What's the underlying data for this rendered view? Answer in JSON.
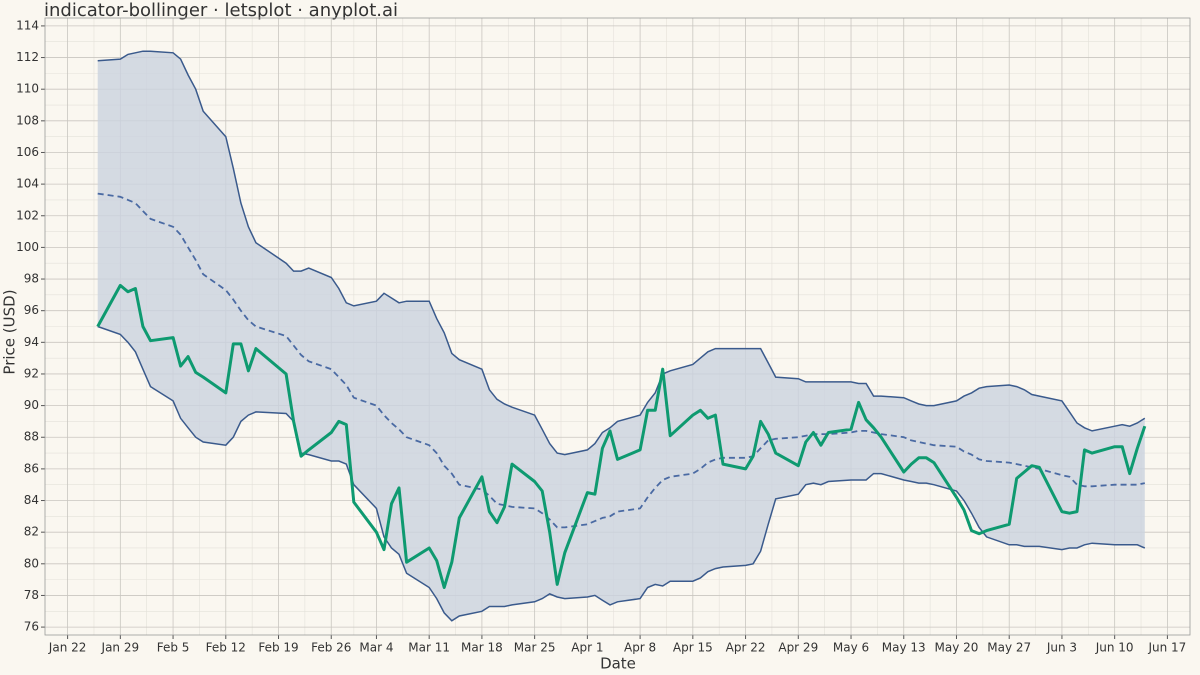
{
  "chart_data": {
    "type": "line",
    "title": "indicator-bollinger · letsplot · anyplot.ai",
    "x_label": "Date",
    "y_label": "Price (USD)",
    "x": [
      "Jan 26",
      "Jan 29",
      "Jan 30",
      "Jan 31",
      "Feb 1",
      "Feb 2",
      "Feb 5",
      "Feb 6",
      "Feb 7",
      "Feb 8",
      "Feb 9",
      "Feb 12",
      "Feb 13",
      "Feb 14",
      "Feb 15",
      "Feb 16",
      "Feb 20",
      "Feb 21",
      "Feb 22",
      "Feb 23",
      "Feb 26",
      "Feb 27",
      "Feb 28",
      "Mar 1",
      "Mar 4",
      "Mar 5",
      "Mar 6",
      "Mar 7",
      "Mar 8",
      "Mar 11",
      "Mar 12",
      "Mar 13",
      "Mar 14",
      "Mar 15",
      "Mar 18",
      "Mar 19",
      "Mar 20",
      "Mar 21",
      "Mar 22",
      "Mar 25",
      "Mar 26",
      "Mar 27",
      "Mar 28",
      "Mar 29",
      "Apr 1",
      "Apr 2",
      "Apr 3",
      "Apr 4",
      "Apr 5",
      "Apr 8",
      "Apr 9",
      "Apr 10",
      "Apr 11",
      "Apr 12",
      "Apr 15",
      "Apr 16",
      "Apr 17",
      "Apr 18",
      "Apr 19",
      "Apr 22",
      "Apr 23",
      "Apr 24",
      "Apr 25",
      "Apr 26",
      "Apr 29",
      "Apr 30",
      "May 1",
      "May 2",
      "May 3",
      "May 6",
      "May 7",
      "May 8",
      "May 9",
      "May 10",
      "May 13",
      "May 14",
      "May 15",
      "May 16",
      "May 17",
      "May 20",
      "May 21",
      "May 22",
      "May 23",
      "May 24",
      "May 27",
      "May 28",
      "May 29",
      "May 30",
      "May 31",
      "Jun 3",
      "Jun 4",
      "Jun 5",
      "Jun 6",
      "Jun 7",
      "Jun 10",
      "Jun 11",
      "Jun 12",
      "Jun 13",
      "Jun 14"
    ],
    "band": {
      "color": "#3a5a8c",
      "fill": "#cbd2de",
      "upper": [
        111.8,
        111.9,
        112.2,
        112.3,
        112.4,
        112.4,
        112.3,
        111.9,
        110.9,
        110.0,
        108.6,
        107.0,
        105.0,
        102.8,
        101.3,
        100.3,
        99.0,
        98.5,
        98.5,
        98.7,
        98.1,
        97.4,
        96.5,
        96.3,
        96.6,
        97.1,
        96.8,
        96.5,
        96.6,
        96.6,
        95.5,
        94.6,
        93.3,
        92.9,
        92.3,
        91.0,
        90.4,
        90.1,
        89.9,
        89.4,
        88.5,
        87.6,
        87.0,
        86.9,
        87.2,
        87.6,
        88.3,
        88.6,
        89.0,
        89.4,
        90.2,
        90.8,
        92.0,
        92.2,
        92.6,
        93.0,
        93.4,
        93.6,
        93.6,
        93.6,
        93.6,
        93.6,
        92.7,
        91.8,
        91.7,
        91.5,
        91.5,
        91.5,
        91.5,
        91.5,
        91.4,
        91.4,
        90.6,
        90.6,
        90.5,
        90.3,
        90.1,
        90.0,
        90.0,
        90.3,
        90.6,
        90.8,
        91.1,
        91.2,
        91.3,
        91.2,
        91.0,
        90.7,
        90.6,
        90.3,
        89.6,
        88.9,
        88.6,
        88.4,
        88.7,
        88.8,
        88.7,
        88.9,
        89.2
      ],
      "lower": [
        95.0,
        94.5,
        94.0,
        93.4,
        92.3,
        91.2,
        90.3,
        89.2,
        88.6,
        88.0,
        87.7,
        87.5,
        88.0,
        89.0,
        89.4,
        89.6,
        89.5,
        89.0,
        87.0,
        86.9,
        86.5,
        86.5,
        86.3,
        85.0,
        83.5,
        81.7,
        81.0,
        80.6,
        79.4,
        78.5,
        77.8,
        76.9,
        76.4,
        76.7,
        77.0,
        77.3,
        77.3,
        77.3,
        77.4,
        77.6,
        77.8,
        78.1,
        77.9,
        77.8,
        77.9,
        78.0,
        77.7,
        77.4,
        77.6,
        77.8,
        78.5,
        78.7,
        78.6,
        78.9,
        78.9,
        79.1,
        79.5,
        79.7,
        79.8,
        79.9,
        80.0,
        80.8,
        82.5,
        84.1,
        84.4,
        85.0,
        85.1,
        85.0,
        85.2,
        85.3,
        85.3,
        85.3,
        85.7,
        85.7,
        85.3,
        85.2,
        85.1,
        85.1,
        85.0,
        84.6,
        84.0,
        83.2,
        82.3,
        81.7,
        81.2,
        81.2,
        81.1,
        81.1,
        81.1,
        80.9,
        81.0,
        81.0,
        81.2,
        81.3,
        81.2,
        81.2,
        81.2,
        81.2,
        81.0
      ]
    },
    "series": [
      {
        "color": "#4a6aa3",
        "dashed": true,
        "values": [
          103.4,
          103.2,
          103.0,
          102.8,
          102.3,
          101.8,
          101.3,
          100.8,
          100.0,
          99.2,
          98.3,
          97.3,
          96.7,
          96.0,
          95.4,
          95.0,
          94.4,
          93.8,
          93.2,
          92.8,
          92.3,
          91.8,
          91.3,
          90.5,
          90.0,
          89.4,
          88.9,
          88.5,
          88.0,
          87.5,
          87.0,
          86.2,
          85.7,
          85.0,
          84.7,
          84.3,
          83.8,
          83.7,
          83.6,
          83.5,
          83.2,
          82.8,
          82.3,
          82.3,
          82.5,
          82.7,
          82.9,
          83.0,
          83.3,
          83.5,
          84.2,
          84.8,
          85.3,
          85.5,
          85.7,
          86.0,
          86.4,
          86.6,
          86.7,
          86.7,
          86.8,
          87.3,
          87.8,
          87.9,
          88.0,
          88.1,
          88.2,
          88.2,
          88.2,
          88.3,
          88.4,
          88.4,
          88.3,
          88.2,
          88.0,
          87.8,
          87.7,
          87.6,
          87.5,
          87.4,
          87.1,
          86.9,
          86.6,
          86.5,
          86.4,
          86.3,
          86.2,
          86.1,
          86.0,
          85.6,
          85.5,
          85.0,
          84.9,
          84.9,
          85.0,
          85.0,
          85.0,
          85.0,
          85.1
        ]
      },
      {
        "color": "#0e9a70",
        "values": [
          95.0,
          97.6,
          97.2,
          97.4,
          95.0,
          94.1,
          94.3,
          92.5,
          93.1,
          92.1,
          91.8,
          90.8,
          93.9,
          93.9,
          92.2,
          93.6,
          92.0,
          89.0,
          86.8,
          87.2,
          88.3,
          89.0,
          88.8,
          83.9,
          82.0,
          80.9,
          83.8,
          84.8,
          80.1,
          81.0,
          80.2,
          78.5,
          80.1,
          82.9,
          85.5,
          83.3,
          82.6,
          83.6,
          86.3,
          85.2,
          84.6,
          82.0,
          78.7,
          80.7,
          84.5,
          84.4,
          87.3,
          88.4,
          86.6,
          87.2,
          89.7,
          89.7,
          92.3,
          88.1,
          89.4,
          89.7,
          89.2,
          89.4,
          86.3,
          86.0,
          86.8,
          89.0,
          88.2,
          87.0,
          86.2,
          87.7,
          88.3,
          87.5,
          88.3,
          88.5,
          90.2,
          89.1,
          88.6,
          88.0,
          85.8,
          86.3,
          86.7,
          86.7,
          86.4,
          84.2,
          83.4,
          82.1,
          81.9,
          82.1,
          82.5,
          85.4,
          85.8,
          86.2,
          86.1,
          83.3,
          83.2,
          83.3,
          87.2,
          87.0,
          87.4,
          87.4,
          85.7,
          87.3,
          88.7
        ]
      }
    ],
    "xlim": [
      "Jan 19",
      "Jun 20"
    ],
    "xticks": [
      "Jan 22",
      "Jan 29",
      "Feb 5",
      "Feb 12",
      "Feb 19",
      "Feb 26",
      "Mar 4",
      "Mar 11",
      "Mar 18",
      "Mar 25",
      "Apr 1",
      "Apr 8",
      "Apr 15",
      "Apr 22",
      "Apr 29",
      "May 6",
      "May 13",
      "May 20",
      "May 27",
      "Jun 3",
      "Jun 10",
      "Jun 17"
    ],
    "ylim": [
      75.5,
      114.5
    ],
    "yticks": [
      76,
      78,
      80,
      82,
      84,
      86,
      88,
      90,
      92,
      94,
      96,
      98,
      100,
      102,
      104,
      106,
      108,
      110,
      112,
      114
    ],
    "grid": true
  }
}
